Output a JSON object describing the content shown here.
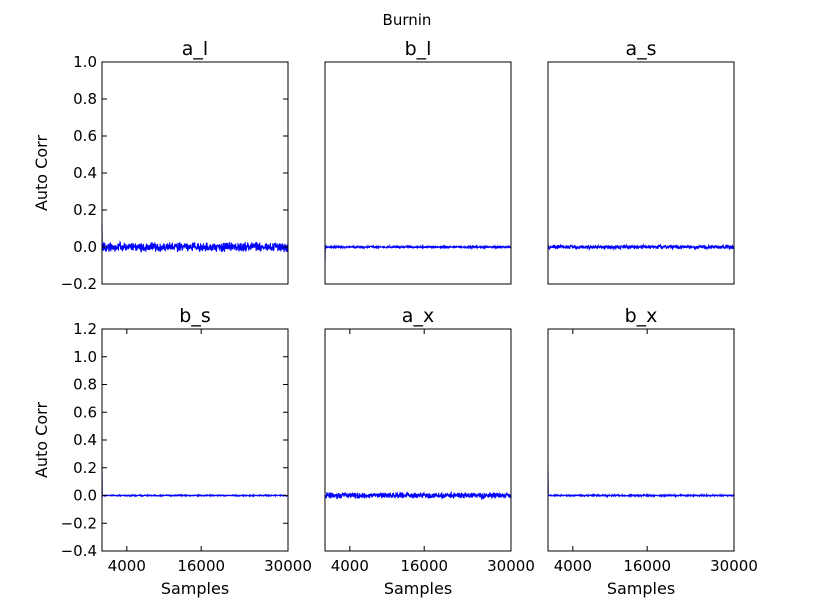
{
  "figure_title": "Burnin",
  "line_color": "#0000ff",
  "chart_data": [
    {
      "type": "line",
      "title": "a_l",
      "xlabel": "",
      "ylabel": "Auto Corr",
      "xlim": [
        0,
        30000
      ],
      "ylim": [
        -0.2,
        1.0
      ],
      "yticks": [
        -0.2,
        0.0,
        0.2,
        0.4,
        0.6,
        0.8,
        1.0
      ],
      "ytick_labels": [
        "−0.2",
        "0.0",
        "0.2",
        "0.4",
        "0.6",
        "0.8",
        "1.0"
      ],
      "xticks": [],
      "xtick_labels": [],
      "series": [
        {
          "start_value": 0.12,
          "mean": 0.0,
          "noise_amplitude": 0.02
        }
      ]
    },
    {
      "type": "line",
      "title": "b_l",
      "xlabel": "",
      "ylabel": "",
      "xlim": [
        0,
        30000
      ],
      "ylim": [
        -0.2,
        1.0
      ],
      "yticks": [],
      "ytick_labels": [],
      "xticks": [],
      "xtick_labels": [],
      "series": [
        {
          "start_value": -0.08,
          "mean": 0.0,
          "noise_amplitude": 0.004
        }
      ]
    },
    {
      "type": "line",
      "title": "a_s",
      "xlabel": "",
      "ylabel": "",
      "xlim": [
        0,
        30000
      ],
      "ylim": [
        -0.2,
        1.0
      ],
      "yticks": [],
      "ytick_labels": [],
      "xticks": [],
      "xtick_labels": [],
      "series": [
        {
          "start_value": 0.0,
          "mean": 0.0,
          "noise_amplitude": 0.008
        }
      ]
    },
    {
      "type": "line",
      "title": "b_s",
      "xlabel": "Samples",
      "ylabel": "Auto Corr",
      "xlim": [
        0,
        30000
      ],
      "ylim": [
        -0.4,
        1.2
      ],
      "yticks": [
        -0.4,
        -0.2,
        0.0,
        0.2,
        0.4,
        0.6,
        0.8,
        1.0,
        1.2
      ],
      "ytick_labels": [
        "−0.4",
        "−0.2",
        "0.0",
        "0.2",
        "0.4",
        "0.6",
        "0.8",
        "1.0",
        "1.2"
      ],
      "xticks": [
        4000,
        16000,
        30000
      ],
      "xtick_labels": [
        "4000",
        "16000",
        "30000"
      ],
      "series": [
        {
          "start_value": 0.2,
          "mean": 0.0,
          "noise_amplitude": 0.003
        }
      ]
    },
    {
      "type": "line",
      "title": "a_x",
      "xlabel": "Samples",
      "ylabel": "",
      "xlim": [
        0,
        30000
      ],
      "ylim": [
        -0.4,
        1.2
      ],
      "yticks": [],
      "ytick_labels": [],
      "xticks": [
        4000,
        16000,
        30000
      ],
      "xtick_labels": [
        "4000",
        "16000",
        "30000"
      ],
      "series": [
        {
          "start_value": -0.02,
          "mean": 0.0,
          "noise_amplitude": 0.016
        }
      ]
    },
    {
      "type": "line",
      "title": "b_x",
      "xlabel": "Samples",
      "ylabel": "",
      "xlim": [
        0,
        30000
      ],
      "ylim": [
        -0.4,
        1.2
      ],
      "yticks": [],
      "ytick_labels": [],
      "xticks": [
        4000,
        16000,
        30000
      ],
      "xtick_labels": [
        "4000",
        "16000",
        "30000"
      ],
      "series": [
        {
          "start_value": 0.18,
          "mean": 0.0,
          "noise_amplitude": 0.004
        }
      ]
    }
  ]
}
